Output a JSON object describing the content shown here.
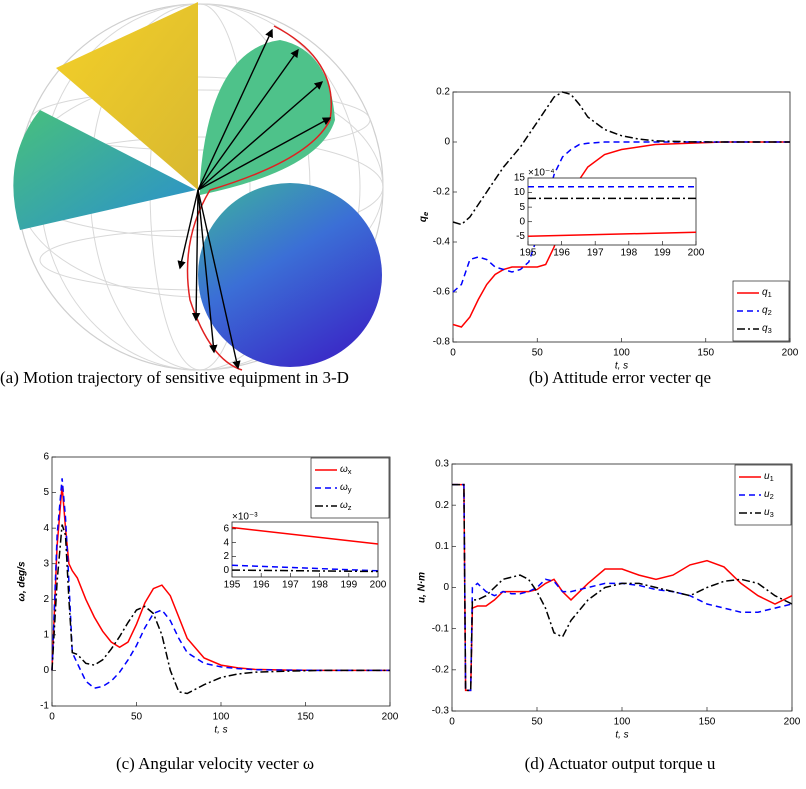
{
  "panel_a": {
    "caption": "(a) Motion trajectory of sensitive equipment in 3-D"
  },
  "chart_data": [
    {
      "type": "line",
      "caption": "(b) Attitude error vecter qe",
      "ylabel": "qe",
      "xlabel": "t, s",
      "x": [
        0,
        5,
        10,
        15,
        20,
        25,
        30,
        35,
        40,
        45,
        50,
        55,
        60,
        65,
        70,
        75,
        80,
        90,
        100,
        110,
        120,
        140,
        160,
        180,
        200
      ],
      "xlim": [
        0,
        200
      ],
      "xticks": [
        0,
        50,
        100,
        150,
        200
      ],
      "ylim": [
        -0.8,
        0.2
      ],
      "yticks": [
        -0.8,
        -0.6,
        -0.4,
        -0.2,
        0,
        0.2
      ],
      "legend": "lower right",
      "series": [
        {
          "name": "q1",
          "color": "#ff0000",
          "style": "solid",
          "values": [
            -0.73,
            -0.74,
            -0.7,
            -0.63,
            -0.57,
            -0.53,
            -0.51,
            -0.5,
            -0.5,
            -0.5,
            -0.5,
            -0.49,
            -0.42,
            -0.32,
            -0.22,
            -0.15,
            -0.1,
            -0.05,
            -0.03,
            -0.02,
            -0.01,
            -0.005,
            0,
            0,
            0
          ]
        },
        {
          "name": "q2",
          "color": "#0000ff",
          "style": "dashed",
          "values": [
            -0.6,
            -0.57,
            -0.47,
            -0.46,
            -0.47,
            -0.5,
            -0.51,
            -0.52,
            -0.51,
            -0.48,
            -0.38,
            -0.25,
            -0.13,
            -0.06,
            -0.03,
            -0.01,
            -0.005,
            0,
            0,
            0,
            0,
            0,
            0,
            0,
            0
          ]
        },
        {
          "name": "q3",
          "color": "#000000",
          "style": "dashdot",
          "values": [
            -0.32,
            -0.33,
            -0.3,
            -0.25,
            -0.2,
            -0.15,
            -0.1,
            -0.06,
            -0.02,
            0.03,
            0.08,
            0.13,
            0.18,
            0.2,
            0.19,
            0.15,
            0.1,
            0.05,
            0.025,
            0.012,
            0.005,
            0.001,
            0,
            0,
            0
          ]
        }
      ],
      "inset": {
        "x": [
          195,
          200
        ],
        "xlim": [
          195,
          200
        ],
        "xticks": [
          195,
          196,
          197,
          198,
          199,
          200
        ],
        "ylim": [
          -8,
          15
        ],
        "yticks": [
          -5,
          0,
          5,
          10,
          15
        ],
        "multiplier": "×10⁻⁴",
        "series": [
          {
            "color": "#ff0000",
            "style": "solid",
            "values": [
              -5,
              -3.6
            ]
          },
          {
            "color": "#0000ff",
            "style": "dashed",
            "values": [
              12,
              12
            ]
          },
          {
            "color": "#000000",
            "style": "dashdot",
            "values": [
              8,
              8
            ]
          }
        ]
      }
    },
    {
      "type": "line",
      "caption": "(c) Angular velocity vecter ω",
      "ylabel": "ω, deg/s",
      "xlabel": "t, s",
      "x": [
        0,
        3,
        6,
        8,
        10,
        12,
        15,
        20,
        25,
        30,
        35,
        40,
        45,
        50,
        55,
        60,
        65,
        70,
        75,
        80,
        90,
        100,
        110,
        120,
        140,
        160,
        180,
        200
      ],
      "xlim": [
        0,
        200
      ],
      "xticks": [
        0,
        50,
        100,
        150,
        200
      ],
      "ylim": [
        -1,
        6
      ],
      "yticks": [
        -1,
        0,
        1,
        2,
        3,
        4,
        5,
        6
      ],
      "legend": "upper right",
      "series": [
        {
          "name": "ωx",
          "color": "#ff0000",
          "style": "solid",
          "values": [
            0,
            3.5,
            5.2,
            4.0,
            3.0,
            2.8,
            2.6,
            2.0,
            1.5,
            1.1,
            0.8,
            0.65,
            0.8,
            1.3,
            1.9,
            2.3,
            2.4,
            2.1,
            1.5,
            0.9,
            0.35,
            0.15,
            0.07,
            0.03,
            0.01,
            0,
            0,
            0
          ]
        },
        {
          "name": "ωy",
          "color": "#0000ff",
          "style": "dashed",
          "values": [
            0,
            3.8,
            5.4,
            4.3,
            2.5,
            0.5,
            0.2,
            -0.3,
            -0.5,
            -0.45,
            -0.3,
            -0.05,
            0.3,
            0.7,
            1.2,
            1.6,
            1.7,
            1.4,
            0.9,
            0.5,
            0.2,
            0.1,
            0.05,
            0.02,
            0.01,
            0,
            0,
            0
          ]
        },
        {
          "name": "ωz",
          "color": "#000000",
          "style": "dashdot",
          "values": [
            0,
            2.5,
            4.1,
            3.8,
            2.0,
            0.5,
            0.45,
            0.2,
            0.15,
            0.3,
            0.6,
            0.95,
            1.35,
            1.7,
            1.8,
            1.6,
            1.0,
            0.0,
            -0.6,
            -0.65,
            -0.4,
            -0.2,
            -0.1,
            -0.05,
            -0.02,
            0,
            0,
            0
          ]
        }
      ],
      "inset": {
        "x": [
          195,
          200
        ],
        "xlim": [
          195,
          200
        ],
        "xticks": [
          195,
          196,
          197,
          198,
          199,
          200
        ],
        "ylim": [
          -1,
          7
        ],
        "yticks": [
          0,
          2,
          4,
          6
        ],
        "multiplier": "×10⁻³",
        "series": [
          {
            "color": "#ff0000",
            "style": "solid",
            "values": [
              6.2,
              3.8
            ]
          },
          {
            "color": "#0000ff",
            "style": "dashed",
            "values": [
              0.7,
              -0.1
            ]
          },
          {
            "color": "#000000",
            "style": "dashdot",
            "values": [
              0,
              -0.2
            ]
          }
        ]
      }
    },
    {
      "type": "line",
      "caption": "(d) Actuator output torque u",
      "ylabel": "u, N·m",
      "xlabel": "t, s",
      "x": [
        0,
        7,
        8,
        11,
        12,
        15,
        20,
        25,
        30,
        35,
        40,
        45,
        50,
        55,
        60,
        65,
        70,
        80,
        90,
        100,
        110,
        120,
        130,
        140,
        150,
        160,
        170,
        180,
        190,
        200
      ],
      "xlim": [
        0,
        200
      ],
      "xticks": [
        0,
        50,
        100,
        150,
        200
      ],
      "ylim": [
        -0.3,
        0.3
      ],
      "yticks": [
        -0.3,
        -0.2,
        -0.1,
        0,
        0.1,
        0.2,
        0.3
      ],
      "legend": "upper right",
      "series": [
        {
          "name": "u1",
          "color": "#ff0000",
          "style": "solid",
          "values": [
            0.25,
            0.25,
            -0.25,
            -0.25,
            -0.05,
            -0.045,
            -0.045,
            -0.03,
            -0.01,
            -0.01,
            -0.01,
            -0.01,
            -0.005,
            0.01,
            0.02,
            -0.01,
            -0.03,
            0.01,
            0.045,
            0.045,
            0.03,
            0.02,
            0.03,
            0.055,
            0.065,
            0.05,
            0.01,
            -0.02,
            -0.04,
            -0.02
          ]
        },
        {
          "name": "u2",
          "color": "#0000ff",
          "style": "dashed",
          "values": [
            0.25,
            0.25,
            -0.25,
            -0.25,
            0.0,
            0.01,
            -0.01,
            -0.02,
            -0.01,
            -0.015,
            -0.015,
            -0.01,
            0.0,
            0.02,
            0.015,
            -0.01,
            -0.01,
            0.0,
            0.01,
            0.01,
            0.005,
            -0.005,
            -0.01,
            -0.02,
            -0.04,
            -0.05,
            -0.06,
            -0.06,
            -0.05,
            -0.04
          ]
        },
        {
          "name": "u3",
          "color": "#000000",
          "style": "dashdot",
          "values": [
            0.25,
            0.25,
            -0.25,
            -0.25,
            -0.03,
            -0.03,
            -0.02,
            0.0,
            0.02,
            0.025,
            0.03,
            0.02,
            -0.01,
            -0.05,
            -0.11,
            -0.12,
            -0.08,
            -0.03,
            0.0,
            0.01,
            0.01,
            0.0,
            -0.01,
            -0.02,
            0.0,
            0.015,
            0.02,
            0.01,
            -0.02,
            -0.04
          ]
        }
      ]
    }
  ]
}
